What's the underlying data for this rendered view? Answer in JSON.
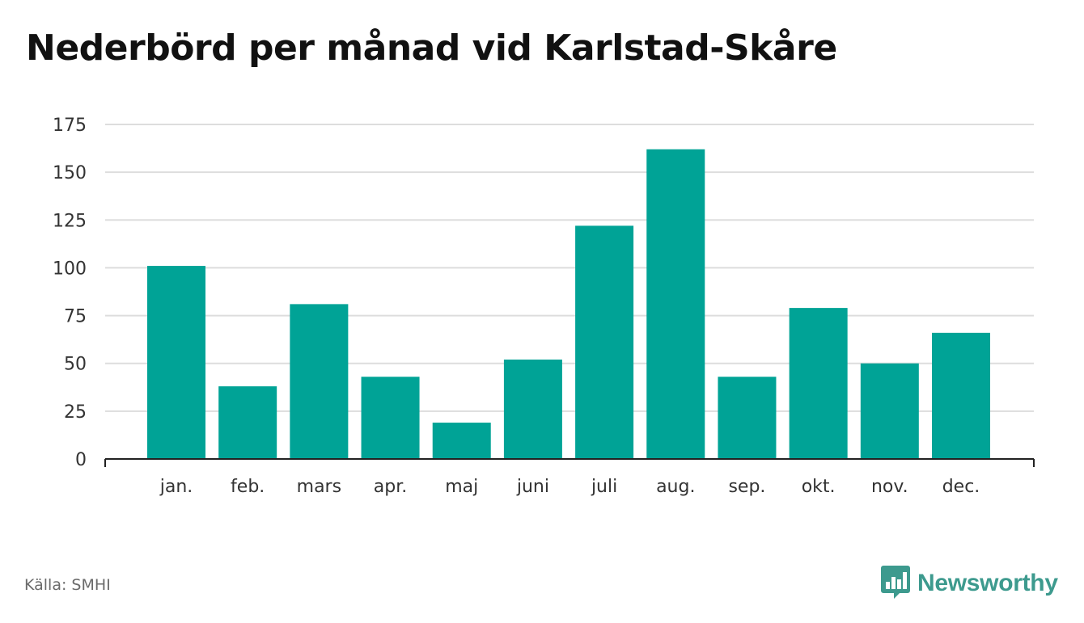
{
  "chart_data": {
    "type": "bar",
    "title": "Nederbörd per månad vid Karlstad-Skåre",
    "categories": [
      "jan.",
      "feb.",
      "mars",
      "apr.",
      "maj",
      "juni",
      "juli",
      "aug.",
      "sep.",
      "okt.",
      "nov.",
      "dec."
    ],
    "values": [
      101,
      38,
      81,
      43,
      19,
      52,
      122,
      162,
      43,
      79,
      50,
      66
    ],
    "xlabel": "",
    "ylabel": "",
    "ylim": [
      0,
      175
    ],
    "yticks": [
      0,
      25,
      50,
      75,
      100,
      125,
      150,
      175
    ],
    "grid": true,
    "bar_color": "#00a396"
  },
  "footer": {
    "source": "Källa: SMHI",
    "brand": "Newsworthy",
    "brand_icon": "newsworthy-logo-icon",
    "brand_color": "#3d9a8e"
  }
}
